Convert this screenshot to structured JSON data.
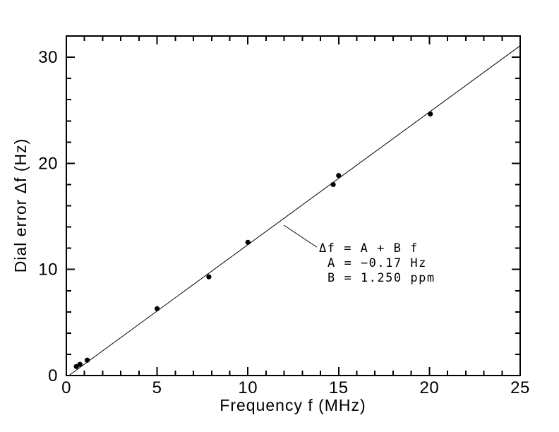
{
  "page": {
    "background": "#ffffff",
    "foreground": "#000000"
  },
  "chart_data": {
    "type": "scatter",
    "title": "",
    "xlabel": "Frequency f (MHz)",
    "ylabel": "Dial error Δf (Hz)",
    "xlim": [
      0,
      25
    ],
    "ylim": [
      0,
      32
    ],
    "grid": false,
    "legend": "none",
    "frame": "full-box-inward-ticks",
    "x_major_ticks": {
      "values": [
        0,
        5,
        10,
        15,
        20,
        25
      ],
      "labels": [
        "0",
        "5",
        "10",
        "15",
        "20",
        "25"
      ]
    },
    "x_minor_tick_step": 1,
    "y_major_ticks": {
      "values": [
        0,
        10,
        20,
        30
      ],
      "labels": [
        "0",
        "10",
        "20",
        "30"
      ]
    },
    "y_minor_tick_step": 2,
    "series": [
      {
        "name": "measured-dial-error",
        "type": "scatter",
        "marker": "filled-circle",
        "color": "#000000",
        "x": [
          0.55,
          0.75,
          1.15,
          5.0,
          7.85,
          10.0,
          14.7,
          15.0,
          20.05
        ],
        "y": [
          0.85,
          1.05,
          1.45,
          6.3,
          9.3,
          12.55,
          18.0,
          18.85,
          24.65
        ]
      },
      {
        "name": "linear-fit",
        "type": "line",
        "color": "#000000",
        "fit": {
          "A_hz": -0.17,
          "B_ppm": 1.25
        },
        "x_range": [
          0.136,
          25
        ]
      }
    ],
    "annotation": {
      "lines": [
        "Δf = A + B f",
        "A = −0.17 Hz",
        "B = 1.250 ppm"
      ],
      "leader": {
        "x1": 11.98,
        "y1": 14.17,
        "x2": 13.8,
        "y2": 12.1
      }
    }
  }
}
